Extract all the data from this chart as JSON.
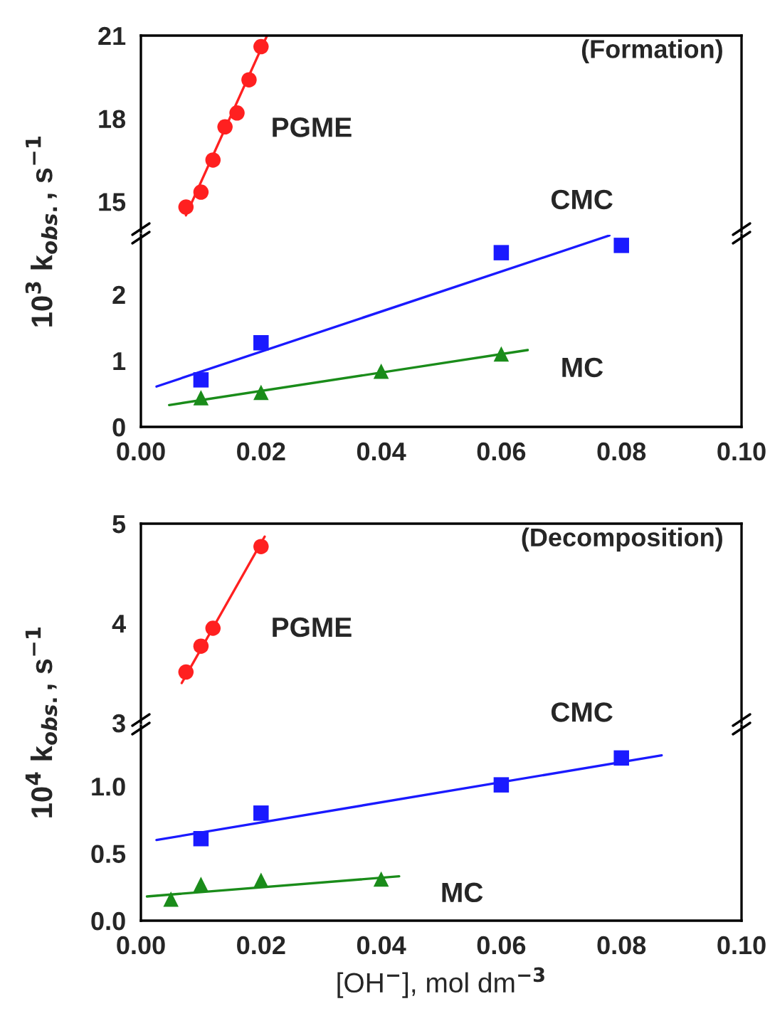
{
  "chart_data": [
    {
      "type": "scatter",
      "annotations": [
        "(Formation)"
      ],
      "xlim": [
        0,
        0.1
      ],
      "ylim": [
        13.9,
        21
      ],
      "yticks": [
        15,
        18,
        21
      ],
      "tick_labels": "y",
      "legend": false,
      "grid": false,
      "series": [
        {
          "name": "PGME",
          "color": "#ff2020",
          "marker": "circle",
          "x": [
            0.0075,
            0.01,
            0.012,
            0.014,
            0.016,
            0.018,
            0.02
          ],
          "values": [
            14.8,
            15.34,
            16.5,
            17.7,
            18.2,
            19.4,
            20.6
          ]
        },
        {
          "type": "line",
          "color": "#ff2020",
          "marker": "none",
          "x": [
            0.0075,
            0.021
          ],
          "values": [
            14.5,
            21
          ]
        }
      ]
    },
    {
      "type": "scatter",
      "ylabel": "10$^{3}$ k$_{obs.}$, s$^{−1}$",
      "xlim": [
        0,
        0.1
      ],
      "xticks": [
        {
          "value": 0,
          "label": "0.00"
        },
        {
          "value": 0.02,
          "label": "0.02"
        },
        {
          "value": 0.04,
          "label": "0.04"
        },
        {
          "value": 0.06,
          "label": "0.06"
        },
        {
          "value": 0.08,
          "label": "0.08"
        },
        {
          "value": 0.1,
          "label": "0.10"
        }
      ],
      "ylim": [
        0,
        2.9
      ],
      "yticks": [
        0,
        1,
        2
      ],
      "legend": false,
      "grid": false,
      "series": [
        {
          "name": "CMC",
          "color": "#1a1aff",
          "marker": "square",
          "x": [
            0.01,
            0.02,
            0.06,
            0.08
          ],
          "values": [
            0.71,
            1.27,
            2.63,
            2.74
          ]
        },
        {
          "type": "line",
          "color": "#1a1aff",
          "marker": "none",
          "x": [
            0.0026,
            0.078
          ],
          "values": [
            0.61,
            2.89
          ]
        },
        {
          "name": "MC",
          "color": "#1a8c1a",
          "marker": "triangle",
          "x": [
            0.01,
            0.02,
            0.04,
            0.06
          ],
          "values": [
            0.44,
            0.52,
            0.84,
            1.1
          ]
        },
        {
          "type": "line",
          "color": "#1a8c1a",
          "marker": "none",
          "x": [
            0.0047,
            0.0644
          ],
          "values": [
            0.33,
            1.16
          ]
        }
      ]
    },
    {
      "type": "scatter",
      "annotations": [
        "(Decomposition)"
      ],
      "xlim": [
        0,
        0.1
      ],
      "ylim": [
        3,
        5
      ],
      "yticks": [
        3,
        4,
        5
      ],
      "tick_labels": "y",
      "legend": false,
      "grid": false,
      "series": [
        {
          "name": "PGME",
          "color": "#ff2020",
          "marker": "circle",
          "x": [
            0.0075,
            0.01,
            0.012,
            0.02
          ],
          "values": [
            3.51,
            3.77,
            3.95,
            4.77
          ]
        },
        {
          "type": "line",
          "color": "#ff2020",
          "marker": "none",
          "x": [
            0.0068,
            0.0206
          ],
          "values": [
            3.4,
            4.87
          ]
        }
      ]
    },
    {
      "type": "scatter",
      "ylabel": "10$^{4}$ k$_{obs.}$, s$^{−1}$",
      "xlabel": "[OH$^{−}$], mol dm$^{−3}$",
      "xlim": [
        0,
        0.1
      ],
      "xticks": [
        {
          "value": 0,
          "label": "0.00"
        },
        {
          "value": 0.02,
          "label": "0.02"
        },
        {
          "value": 0.04,
          "label": "0.04"
        },
        {
          "value": 0.06,
          "label": "0.06"
        },
        {
          "value": 0.08,
          "label": "0.08"
        },
        {
          "value": 0.1,
          "label": "0.10"
        }
      ],
      "ylim": [
        0,
        1.45
      ],
      "yticks": [
        {
          "value": 0,
          "label": "0.0"
        },
        {
          "value": 0.5,
          "label": "0.5"
        },
        {
          "value": 1.0,
          "label": "1.0"
        }
      ],
      "legend": false,
      "grid": false,
      "series": [
        {
          "name": "CMC",
          "color": "#1a1aff",
          "marker": "square",
          "x": [
            0.01,
            0.02,
            0.06,
            0.08
          ],
          "values": [
            0.61,
            0.8,
            1.01,
            1.21
          ]
        },
        {
          "type": "line",
          "color": "#1a1aff",
          "marker": "none",
          "x": [
            0.0026,
            0.0867
          ],
          "values": [
            0.6,
            1.23
          ]
        },
        {
          "name": "MC",
          "color": "#1a8c1a",
          "marker": "triangle",
          "x": [
            0.005,
            0.01,
            0.02,
            0.04
          ],
          "values": [
            0.16,
            0.27,
            0.3,
            0.31
          ]
        },
        {
          "type": "line",
          "color": "#1a8c1a",
          "marker": "none",
          "x": [
            0.001,
            0.043
          ],
          "values": [
            0.18,
            0.33
          ]
        }
      ]
    }
  ]
}
